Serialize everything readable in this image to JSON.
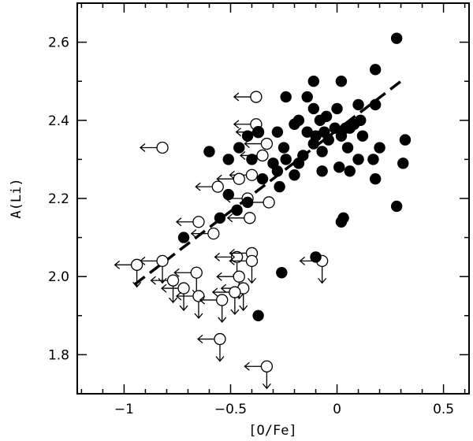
{
  "chart_data": {
    "type": "scatter",
    "xlabel": "[O/Fe]",
    "ylabel": "A(Li)",
    "xlim": [
      -1.22,
      0.62
    ],
    "ylim": [
      1.7,
      2.7
    ],
    "xticks": [
      -1,
      -0.5,
      0,
      0.5
    ],
    "xtick_labels": [
      "−1",
      "−0.5",
      "0",
      "0.5"
    ],
    "yticks": [
      1.8,
      2.0,
      2.2,
      2.4,
      2.6
    ],
    "ytick_labels": [
      "1.8",
      "2.0",
      "2.2",
      "2.4",
      "2.6"
    ],
    "grid": false,
    "series": [
      {
        "marker": "filled-circle",
        "color": "#000000",
        "points": [
          [
            0.28,
            2.61
          ],
          [
            0.18,
            2.53
          ],
          [
            -0.11,
            2.5
          ],
          [
            0.02,
            2.5
          ],
          [
            -0.24,
            2.46
          ],
          [
            -0.14,
            2.46
          ],
          [
            -0.11,
            2.43
          ],
          [
            0.0,
            2.43
          ],
          [
            0.1,
            2.44
          ],
          [
            0.18,
            2.44
          ],
          [
            -0.18,
            2.4
          ],
          [
            -0.08,
            2.4
          ],
          [
            -0.05,
            2.41
          ],
          [
            -0.01,
            2.38
          ],
          [
            0.04,
            2.38
          ],
          [
            0.08,
            2.39
          ],
          [
            0.11,
            2.4
          ],
          [
            -0.28,
            2.37
          ],
          [
            -0.2,
            2.39
          ],
          [
            -0.14,
            2.37
          ],
          [
            -0.1,
            2.36
          ],
          [
            -0.06,
            2.37
          ],
          [
            0.02,
            2.36
          ],
          [
            0.06,
            2.38
          ],
          [
            -0.42,
            2.36
          ],
          [
            -0.37,
            2.37
          ],
          [
            -0.25,
            2.33
          ],
          [
            -0.11,
            2.34
          ],
          [
            -0.04,
            2.35
          ],
          [
            0.05,
            2.33
          ],
          [
            0.12,
            2.36
          ],
          [
            0.2,
            2.33
          ],
          [
            0.32,
            2.35
          ],
          [
            -0.6,
            2.32
          ],
          [
            -0.46,
            2.33
          ],
          [
            -0.24,
            2.3
          ],
          [
            -0.16,
            2.31
          ],
          [
            -0.07,
            2.32
          ],
          [
            0.1,
            2.3
          ],
          [
            0.17,
            2.3
          ],
          [
            -0.51,
            2.3
          ],
          [
            -0.4,
            2.3
          ],
          [
            -0.3,
            2.29
          ],
          [
            -0.18,
            2.29
          ],
          [
            -0.07,
            2.27
          ],
          [
            0.01,
            2.28
          ],
          [
            0.31,
            2.29
          ],
          [
            -0.28,
            2.27
          ],
          [
            -0.2,
            2.26
          ],
          [
            0.06,
            2.27
          ],
          [
            0.18,
            2.25
          ],
          [
            -0.35,
            2.25
          ],
          [
            -0.27,
            2.23
          ],
          [
            -0.51,
            2.21
          ],
          [
            -0.47,
            2.17
          ],
          [
            -0.42,
            2.19
          ],
          [
            -0.55,
            2.15
          ],
          [
            0.28,
            2.18
          ],
          [
            0.03,
            2.15
          ],
          [
            0.02,
            2.14
          ],
          [
            -0.72,
            2.1
          ],
          [
            -0.1,
            2.05
          ],
          [
            -0.26,
            2.01
          ],
          [
            -0.37,
            1.9
          ]
        ]
      },
      {
        "marker": "open-circle-upper-limit",
        "color": "#000000",
        "points": [
          [
            -0.38,
            2.46
          ],
          [
            -0.82,
            2.33
          ],
          [
            -0.38,
            2.39
          ],
          [
            -0.37,
            2.37
          ],
          [
            -0.33,
            2.34
          ],
          [
            -0.35,
            2.31
          ],
          [
            -0.4,
            2.26
          ],
          [
            -0.46,
            2.25
          ],
          [
            -0.56,
            2.23
          ],
          [
            -0.42,
            2.2
          ],
          [
            -0.32,
            2.19
          ],
          [
            -0.41,
            2.15
          ],
          [
            -0.65,
            2.14
          ],
          [
            -0.58,
            2.11
          ],
          [
            -0.82,
            2.04
          ],
          [
            -0.94,
            2.03
          ],
          [
            -0.47,
            2.05
          ],
          [
            -0.4,
            2.06
          ],
          [
            -0.4,
            2.04
          ],
          [
            -0.07,
            2.04
          ],
          [
            -0.66,
            2.01
          ],
          [
            -0.46,
            2.0
          ],
          [
            -0.77,
            1.99
          ],
          [
            -0.72,
            1.97
          ],
          [
            -0.44,
            1.97
          ],
          [
            -0.48,
            1.96
          ],
          [
            -0.65,
            1.95
          ],
          [
            -0.54,
            1.94
          ],
          [
            -0.55,
            1.84
          ],
          [
            -0.33,
            1.77
          ]
        ]
      }
    ],
    "trend_line": {
      "style": "dashed",
      "x": [
        -0.95,
        0.3
      ],
      "y": [
        1.98,
        2.5
      ]
    }
  }
}
